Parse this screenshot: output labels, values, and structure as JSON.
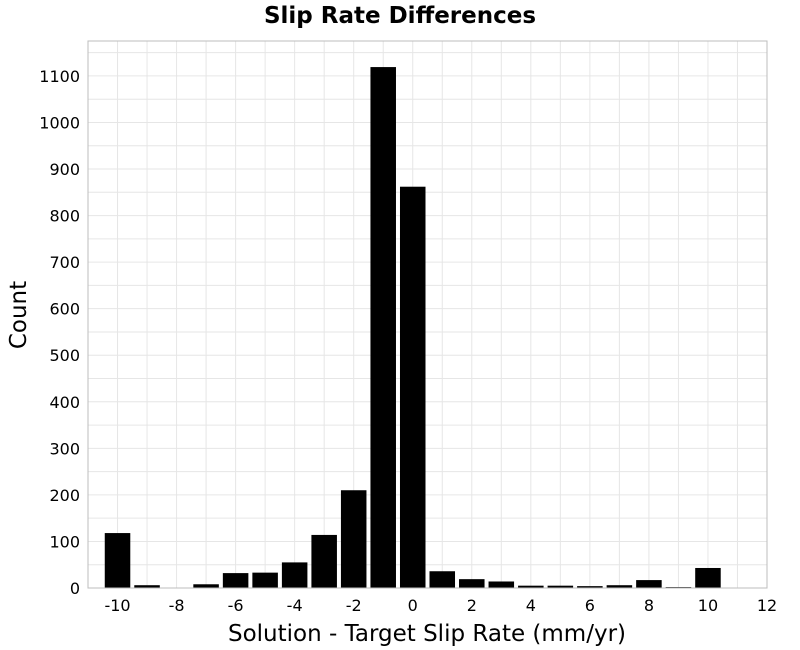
{
  "chart_data": {
    "type": "bar",
    "title": "Slip Rate Differences",
    "xlabel": "Solution - Target Slip Rate (mm/yr)",
    "ylabel": "Count",
    "xlim": [
      -11,
      12
    ],
    "ylim": [
      0,
      1175
    ],
    "xticks": [
      -10,
      -8,
      -6,
      -4,
      -2,
      0,
      2,
      4,
      6,
      8,
      10,
      12
    ],
    "yticks": [
      0,
      100,
      200,
      300,
      400,
      500,
      600,
      700,
      800,
      900,
      1000,
      1100
    ],
    "bin_width": 1,
    "bin_centers": [
      -10,
      -9,
      -8,
      -7,
      -6,
      -5,
      -4,
      -3,
      -2,
      -1,
      0,
      1,
      2,
      3,
      4,
      5,
      6,
      7,
      8,
      9,
      10
    ],
    "values": [
      118,
      6,
      0,
      8,
      32,
      33,
      55,
      114,
      210,
      1119,
      862,
      36,
      19,
      14,
      5,
      5,
      4,
      6,
      17,
      2,
      43
    ],
    "grid": true,
    "bar_color": "#000000"
  }
}
